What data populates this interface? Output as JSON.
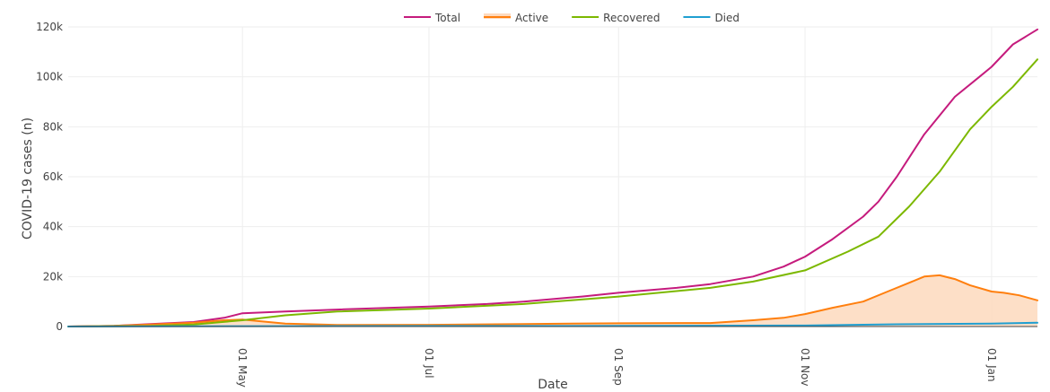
{
  "chart_data": {
    "type": "line",
    "xlabel": "Date",
    "ylabel": "COVID-19 cases (n)",
    "x_type": "date",
    "xlim": [
      "2020-03-05",
      "2021-01-16"
    ],
    "ylim": [
      0,
      120000
    ],
    "grid": true,
    "legend_position": "top-center",
    "x_ticks": [
      {
        "date": "2020-05-01",
        "label": "01 May"
      },
      {
        "date": "2020-07-01",
        "label": "01 Jul"
      },
      {
        "date": "2020-09-01",
        "label": "01 Sep"
      },
      {
        "date": "2020-11-01",
        "label": "01 Nov"
      },
      {
        "date": "2021-01-01",
        "label": "01 Jan"
      }
    ],
    "y_ticks": [
      {
        "value": 0,
        "label": "0"
      },
      {
        "value": 20000,
        "label": "20k"
      },
      {
        "value": 40000,
        "label": "40k"
      },
      {
        "value": 60000,
        "label": "60k"
      },
      {
        "value": 80000,
        "label": "80k"
      },
      {
        "value": 100000,
        "label": "100k"
      },
      {
        "value": 120000,
        "label": "120k"
      }
    ],
    "series": [
      {
        "name": "Total",
        "color": "#c51b7d",
        "fill": false,
        "points": [
          [
            "2020-03-05",
            0
          ],
          [
            "2020-03-20",
            300
          ],
          [
            "2020-04-01",
            1000
          ],
          [
            "2020-04-15",
            1800
          ],
          [
            "2020-04-25",
            3500
          ],
          [
            "2020-05-01",
            5300
          ],
          [
            "2020-05-15",
            6000
          ],
          [
            "2020-06-01",
            6800
          ],
          [
            "2020-07-01",
            8000
          ],
          [
            "2020-07-20",
            9000
          ],
          [
            "2020-08-01",
            10000
          ],
          [
            "2020-08-20",
            12000
          ],
          [
            "2020-09-01",
            13500
          ],
          [
            "2020-09-20",
            15500
          ],
          [
            "2020-10-01",
            17000
          ],
          [
            "2020-10-15",
            20000
          ],
          [
            "2020-10-25",
            24000
          ],
          [
            "2020-11-01",
            28000
          ],
          [
            "2020-11-10",
            35000
          ],
          [
            "2020-11-20",
            44000
          ],
          [
            "2020-11-25",
            50000
          ],
          [
            "2020-12-01",
            60000
          ],
          [
            "2020-12-10",
            77000
          ],
          [
            "2020-12-20",
            92000
          ],
          [
            "2020-12-28",
            100000
          ],
          [
            "2021-01-01",
            104000
          ],
          [
            "2021-01-08",
            113000
          ],
          [
            "2021-01-16",
            119000
          ]
        ]
      },
      {
        "name": "Active",
        "color": "#ff7f0e",
        "fill": true,
        "fill_color": "#fdd9bd",
        "points": [
          [
            "2020-03-05",
            0
          ],
          [
            "2020-03-20",
            300
          ],
          [
            "2020-04-01",
            800
          ],
          [
            "2020-04-15",
            1500
          ],
          [
            "2020-04-25",
            2500
          ],
          [
            "2020-05-01",
            2800
          ],
          [
            "2020-05-15",
            1200
          ],
          [
            "2020-06-01",
            600
          ],
          [
            "2020-07-01",
            700
          ],
          [
            "2020-08-01",
            1000
          ],
          [
            "2020-09-01",
            1300
          ],
          [
            "2020-10-01",
            1400
          ],
          [
            "2020-10-15",
            2500
          ],
          [
            "2020-10-25",
            3500
          ],
          [
            "2020-11-01",
            5000
          ],
          [
            "2020-11-10",
            7500
          ],
          [
            "2020-11-20",
            10000
          ],
          [
            "2020-11-28",
            14000
          ],
          [
            "2020-12-05",
            17500
          ],
          [
            "2020-12-10",
            20000
          ],
          [
            "2020-12-15",
            20500
          ],
          [
            "2020-12-20",
            19000
          ],
          [
            "2020-12-25",
            16500
          ],
          [
            "2021-01-01",
            14000
          ],
          [
            "2021-01-05",
            13500
          ],
          [
            "2021-01-10",
            12500
          ],
          [
            "2021-01-16",
            10500
          ]
        ]
      },
      {
        "name": "Recovered",
        "color": "#7cb800",
        "fill": false,
        "points": [
          [
            "2020-03-05",
            0
          ],
          [
            "2020-04-01",
            200
          ],
          [
            "2020-04-15",
            800
          ],
          [
            "2020-05-01",
            2500
          ],
          [
            "2020-05-15",
            4500
          ],
          [
            "2020-06-01",
            6000
          ],
          [
            "2020-07-01",
            7200
          ],
          [
            "2020-08-01",
            9000
          ],
          [
            "2020-09-01",
            12000
          ],
          [
            "2020-10-01",
            15500
          ],
          [
            "2020-10-15",
            18000
          ],
          [
            "2020-11-01",
            22500
          ],
          [
            "2020-11-15",
            30000
          ],
          [
            "2020-11-25",
            36000
          ],
          [
            "2020-12-05",
            48000
          ],
          [
            "2020-12-15",
            62000
          ],
          [
            "2020-12-25",
            79000
          ],
          [
            "2021-01-01",
            88000
          ],
          [
            "2021-01-08",
            96000
          ],
          [
            "2021-01-16",
            107000
          ]
        ]
      },
      {
        "name": "Died",
        "color": "#1f9fd1",
        "fill": false,
        "points": [
          [
            "2020-03-05",
            0
          ],
          [
            "2020-05-01",
            150
          ],
          [
            "2020-07-01",
            200
          ],
          [
            "2020-09-01",
            250
          ],
          [
            "2020-11-01",
            400
          ],
          [
            "2020-12-01",
            900
          ],
          [
            "2021-01-01",
            1200
          ],
          [
            "2021-01-16",
            1500
          ]
        ]
      }
    ]
  }
}
